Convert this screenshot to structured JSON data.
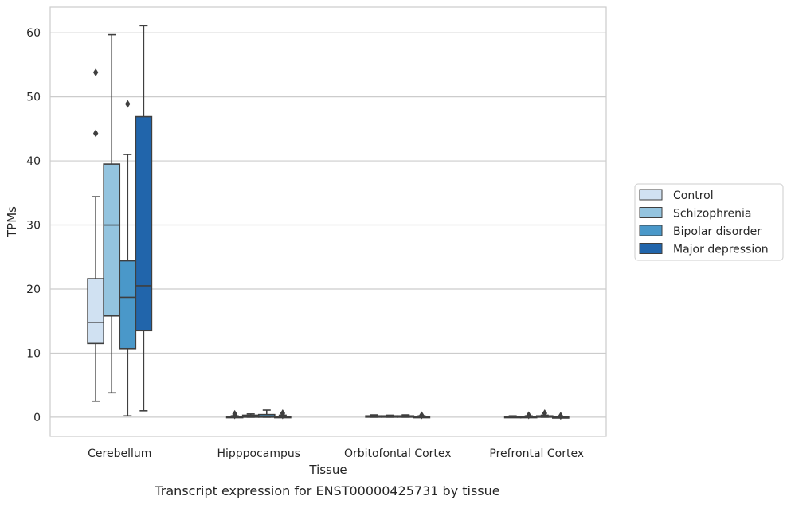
{
  "chart_data": {
    "type": "box",
    "title": "Transcript expression for ENST00000425731 by tissue",
    "xlabel": "Tissue",
    "ylabel": "TPMs",
    "ylim": [
      -3,
      64
    ],
    "yticks": [
      0,
      10,
      20,
      30,
      40,
      50,
      60
    ],
    "grid": true,
    "legend_position": "right",
    "categories": [
      "Cerebellum",
      "Hipppocampus",
      "Orbitofontal Cortex",
      "Prefrontal Cortex"
    ],
    "series": [
      {
        "name": "Control",
        "color": "#d0e1f2",
        "boxes": [
          {
            "whisker_low": 2.5,
            "q1": 11.5,
            "median": 14.8,
            "q3": 21.6,
            "whisker_high": 34.4,
            "outliers": [
              44.3,
              53.8
            ]
          },
          {
            "whisker_low": 0.0,
            "q1": 0.0,
            "median": 0.05,
            "q3": 0.1,
            "whisker_high": 0.2,
            "outliers": [
              0.3,
              0.5
            ]
          },
          {
            "whisker_low": 0.0,
            "q1": 0.0,
            "median": 0.1,
            "q3": 0.2,
            "whisker_high": 0.35,
            "outliers": []
          },
          {
            "whisker_low": 0.0,
            "q1": 0.0,
            "median": 0.05,
            "q3": 0.1,
            "whisker_high": 0.2,
            "outliers": []
          }
        ]
      },
      {
        "name": "Schizophrenia",
        "color": "#94c4df",
        "boxes": [
          {
            "whisker_low": 3.8,
            "q1": 15.8,
            "median": 30.0,
            "q3": 39.5,
            "whisker_high": 59.7,
            "outliers": []
          },
          {
            "whisker_low": 0.0,
            "q1": 0.0,
            "median": 0.1,
            "q3": 0.3,
            "whisker_high": 0.5,
            "outliers": []
          },
          {
            "whisker_low": 0.0,
            "q1": 0.0,
            "median": 0.1,
            "q3": 0.2,
            "whisker_high": 0.3,
            "outliers": []
          },
          {
            "whisker_low": 0.0,
            "q1": 0.0,
            "median": 0.05,
            "q3": 0.1,
            "whisker_high": 0.2,
            "outliers": [
              0.3
            ]
          }
        ]
      },
      {
        "name": "Bipolar disorder",
        "color": "#4a98c9",
        "boxes": [
          {
            "whisker_low": 0.2,
            "q1": 10.7,
            "median": 18.7,
            "q3": 24.4,
            "whisker_high": 41.0,
            "outliers": [
              48.9
            ]
          },
          {
            "whisker_low": 0.0,
            "q1": 0.0,
            "median": 0.1,
            "q3": 0.4,
            "whisker_high": 1.1,
            "outliers": []
          },
          {
            "whisker_low": 0.0,
            "q1": 0.0,
            "median": 0.1,
            "q3": 0.2,
            "whisker_high": 0.35,
            "outliers": []
          },
          {
            "whisker_low": 0.0,
            "q1": 0.0,
            "median": 0.05,
            "q3": 0.2,
            "whisker_high": 0.3,
            "outliers": [
              0.6
            ]
          }
        ]
      },
      {
        "name": "Major depression",
        "color": "#2165ab",
        "boxes": [
          {
            "whisker_low": 1.0,
            "q1": 13.5,
            "median": 20.5,
            "q3": 46.9,
            "whisker_high": 61.1,
            "outliers": []
          },
          {
            "whisker_low": 0.0,
            "q1": 0.0,
            "median": 0.05,
            "q3": 0.1,
            "whisker_high": 0.3,
            "outliers": [
              0.3,
              0.6
            ]
          },
          {
            "whisker_low": 0.0,
            "q1": 0.0,
            "median": 0.05,
            "q3": 0.1,
            "whisker_high": 0.2,
            "outliers": [
              0.3
            ]
          },
          {
            "whisker_low": 0.0,
            "q1": 0.0,
            "median": 0.0,
            "q3": 0.05,
            "whisker_high": 0.1,
            "outliers": [
              0.2
            ]
          }
        ]
      }
    ]
  }
}
